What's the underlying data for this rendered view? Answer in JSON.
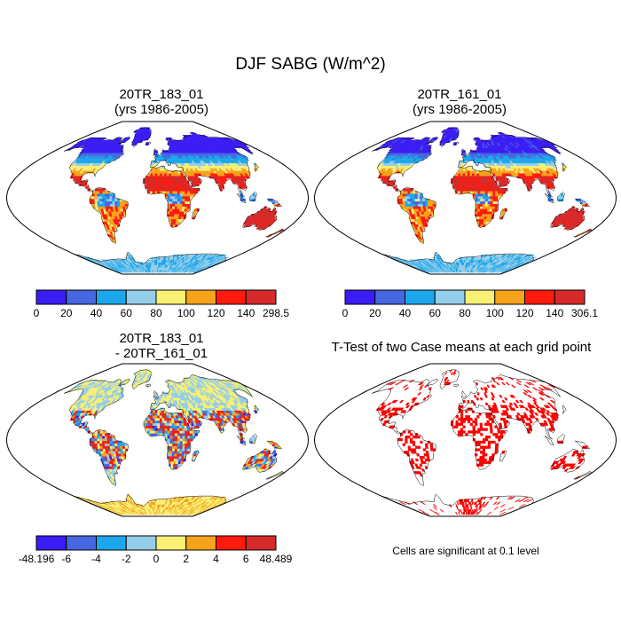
{
  "title": "DJF SABG (W/m^2)",
  "panels": [
    {
      "id": "case1",
      "title_line1": "20TR_183_01",
      "title_line2": "(yrs 1986-2005)"
    },
    {
      "id": "case2",
      "title_line1": "20TR_161_01",
      "title_line2": "(yrs 1986-2005)"
    },
    {
      "id": "diff",
      "title_line1": "20TR_183_01",
      "title_line2": "- 20TR_161_01"
    },
    {
      "id": "ttest",
      "title_line1": "T-Test of two Case means at each grid point",
      "title_line2": ""
    }
  ],
  "colorbars": [
    {
      "id": "cb1",
      "colors": [
        "#3a1cf5",
        "#4667e0",
        "#1ca7ec",
        "#94cdea",
        "#f8ef74",
        "#f6a21b",
        "#ff1a0e",
        "#d62a2a"
      ],
      "labels": [
        "0",
        "20",
        "40",
        "60",
        "80",
        "100",
        "120",
        "140",
        "298.5"
      ]
    },
    {
      "id": "cb2",
      "colors": [
        "#3a1cf5",
        "#4667e0",
        "#1ca7ec",
        "#94cdea",
        "#f8ef74",
        "#f6a21b",
        "#ff1a0e",
        "#d62a2a"
      ],
      "labels": [
        "0",
        "20",
        "40",
        "60",
        "80",
        "100",
        "120",
        "140",
        "306.1"
      ]
    },
    {
      "id": "cb3",
      "colors": [
        "#3a1cf5",
        "#4667e0",
        "#1ca7ec",
        "#94cdea",
        "#f8ef74",
        "#f6a21b",
        "#ff1a0e",
        "#d62a2a"
      ],
      "labels": [
        "-48.196",
        "-6",
        "-4",
        "-2",
        "0",
        "2",
        "4",
        "6",
        "48.489"
      ]
    }
  ],
  "significance_note": "Cells are significant at 0.1 level"
}
